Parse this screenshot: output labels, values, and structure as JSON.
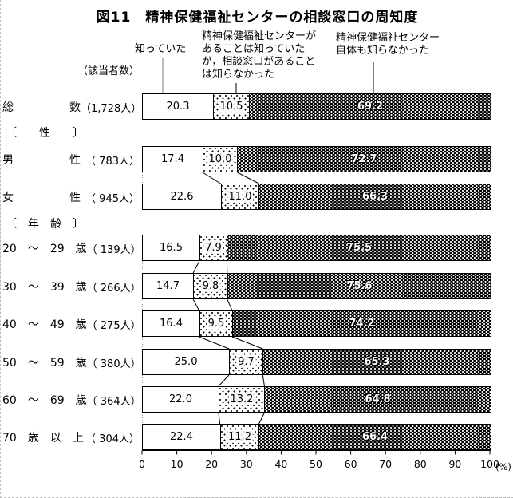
{
  "title": "図11　精神保健福祉センターの相談窓口の周知度",
  "annotations": {
    "respondents_label": "（該当者数）",
    "legend_knew": "知っていた",
    "legend_knew_center_only_lines": [
      "精神保健福祉センターが",
      "あることは知っていた",
      "が，相談窓口があること",
      "は知らなかった"
    ],
    "legend_unknown_lines": [
      "精神保健福祉センター",
      "自体も知らなかった"
    ]
  },
  "chart_data": {
    "type": "bar",
    "orientation": "horizontal",
    "stacked": true,
    "unit": "%",
    "xlim": [
      0,
      100
    ],
    "x_ticks": [
      0,
      10,
      20,
      30,
      40,
      50,
      60,
      70,
      80,
      90,
      100
    ],
    "axis_unit_label": "(%)",
    "series_names": [
      "知っていた",
      "精神保健福祉センターがあることは知っていたが，相談窓口があることは知らなかった",
      "精神保健福祉センター自体も知らなかった"
    ],
    "groups": [
      {
        "header": "",
        "rows": [
          {
            "label": "総　　　　　数",
            "count": "（1,728人）",
            "values": [
              20.3,
              10.5,
              69.2
            ]
          }
        ]
      },
      {
        "header": "〔　　性　　〕",
        "rows": [
          {
            "label": "男　　　　　性",
            "count": "（ 783人）",
            "values": [
              17.4,
              10.0,
              72.7
            ]
          },
          {
            "label": "女　　　　　性",
            "count": "（ 945人）",
            "values": [
              22.6,
              11.0,
              66.3
            ]
          }
        ]
      },
      {
        "header": "〔　年　齢　〕",
        "rows": [
          {
            "label": "20　～　29　歳",
            "count": "（ 139人）",
            "values": [
              16.5,
              7.9,
              75.5
            ]
          },
          {
            "label": "30　～　39　歳",
            "count": "（ 266人）",
            "values": [
              14.7,
              9.8,
              75.6
            ]
          },
          {
            "label": "40　～　49　歳",
            "count": "（ 275人）",
            "values": [
              16.4,
              9.5,
              74.2
            ]
          },
          {
            "label": "50　～　59　歳",
            "count": "（ 380人）",
            "values": [
              25.0,
              9.7,
              65.3
            ]
          },
          {
            "label": "60　～　69　歳",
            "count": "（ 364人）",
            "values": [
              22.0,
              13.2,
              64.8
            ]
          },
          {
            "label": "70　歳　以　上",
            "count": "（ 304人）",
            "values": [
              22.4,
              11.2,
              66.4
            ]
          }
        ]
      }
    ]
  }
}
